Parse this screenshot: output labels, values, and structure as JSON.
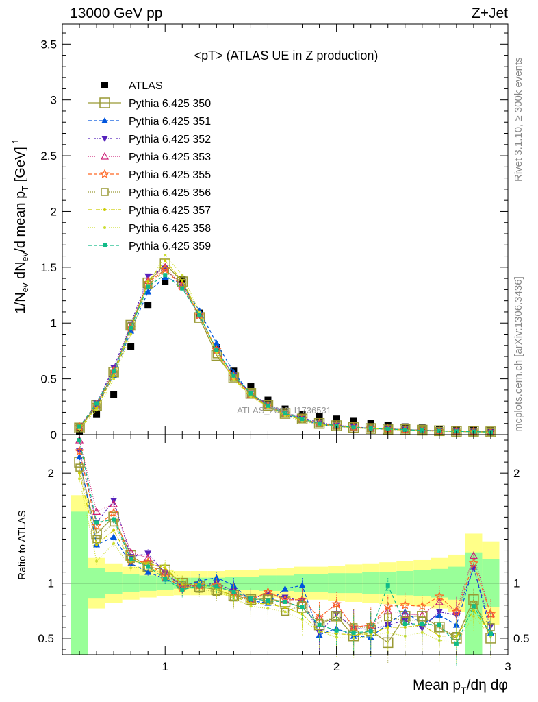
{
  "header": {
    "left": "13000 GeV pp",
    "right": "Z+Jet"
  },
  "side_text": {
    "rivet": "Rivet 3.1.10, ≥ 300k events",
    "source": "mcplots.cern.ch [arXiv:1306.3436]"
  },
  "watermark": "ATLAS_2019_I1736531",
  "colors": {
    "data": "#000000",
    "band_inner": "#99ff99",
    "band_outer": "#ffff88",
    "s350": "#999933",
    "s351": "#0055dd",
    "s352": "#5522bb",
    "s353": "#cc2277",
    "s355": "#ff6622",
    "s356": "#999933",
    "s357": "#cccc00",
    "s358": "#ccdd33",
    "s359": "#11bb88"
  },
  "chart_data": [
    {
      "type": "scatter",
      "title": "<pT> (ATLAS UE in Z production)",
      "xlabel": "Mean p_T/dη dφ",
      "ylabel": "1/N_ev dN_ev/d mean p_T [GeV]^-1",
      "xlim": [
        0.4,
        3.0
      ],
      "ylim": [
        0,
        3.68
      ],
      "yticks": [
        0,
        0.5,
        1,
        1.5,
        2,
        2.5,
        3,
        3.5
      ],
      "yticklabels": [
        "0",
        "0.5",
        "1",
        "1.5",
        "2",
        "2.5",
        "3",
        "3.5"
      ],
      "legend_position": "top-left",
      "x": [
        0.5,
        0.6,
        0.7,
        0.8,
        0.9,
        1.0,
        1.1,
        1.2,
        1.3,
        1.4,
        1.5,
        1.6,
        1.7,
        1.8,
        1.9,
        2.0,
        2.1,
        2.2,
        2.3,
        2.4,
        2.5,
        2.6,
        2.7,
        2.8,
        2.9
      ],
      "series": [
        {
          "name": "ATLAS",
          "style": "data",
          "values": [
            0.03,
            0.18,
            0.36,
            0.79,
            1.16,
            1.37,
            1.39,
            1.09,
            0.78,
            0.57,
            0.43,
            0.31,
            0.23,
            0.18,
            0.16,
            0.14,
            0.12,
            0.1,
            0.08,
            0.07,
            0.06,
            0.05,
            0.045,
            0.04,
            0.035
          ]
        },
        {
          "name": "Pythia 6.425 350",
          "style": "s350",
          "values": [
            0.06,
            0.26,
            0.56,
            0.98,
            1.36,
            1.53,
            1.37,
            1.05,
            0.71,
            0.51,
            0.37,
            0.26,
            0.19,
            0.14,
            0.1,
            0.08,
            0.065,
            0.055,
            0.05,
            0.045,
            0.04,
            0.035,
            0.03,
            0.03,
            0.025
          ]
        },
        {
          "name": "Pythia 6.425 351",
          "style": "s351",
          "values": [
            0.07,
            0.26,
            0.53,
            0.93,
            1.28,
            1.41,
            1.35,
            1.11,
            0.82,
            0.56,
            0.36,
            0.25,
            0.18,
            0.13,
            0.09,
            0.075,
            0.062,
            0.054,
            0.048,
            0.042,
            0.037,
            0.032,
            0.028,
            0.026,
            0.022
          ]
        },
        {
          "name": "Pythia 6.425 352",
          "style": "s352",
          "values": [
            0.07,
            0.28,
            0.6,
            0.99,
            1.42,
            1.49,
            1.33,
            1.07,
            0.76,
            0.53,
            0.37,
            0.27,
            0.2,
            0.15,
            0.11,
            0.085,
            0.07,
            0.058,
            0.052,
            0.046,
            0.04,
            0.035,
            0.031,
            0.028,
            0.024
          ]
        },
        {
          "name": "Pythia 6.425 353",
          "style": "s353",
          "values": [
            0.07,
            0.27,
            0.58,
            0.97,
            1.38,
            1.5,
            1.34,
            1.06,
            0.75,
            0.52,
            0.36,
            0.26,
            0.19,
            0.14,
            0.1,
            0.08,
            0.066,
            0.056,
            0.05,
            0.044,
            0.038,
            0.033,
            0.029,
            0.027,
            0.023
          ]
        },
        {
          "name": "Pythia 6.425 355",
          "style": "s355",
          "values": [
            0.07,
            0.27,
            0.57,
            0.96,
            1.36,
            1.48,
            1.33,
            1.07,
            0.76,
            0.52,
            0.36,
            0.26,
            0.19,
            0.14,
            0.1,
            0.08,
            0.066,
            0.056,
            0.05,
            0.044,
            0.038,
            0.033,
            0.029,
            0.027,
            0.023
          ]
        },
        {
          "name": "Pythia 6.425 356",
          "style": "s356",
          "values": [
            0.06,
            0.25,
            0.55,
            0.97,
            1.34,
            1.47,
            1.36,
            1.04,
            0.72,
            0.51,
            0.37,
            0.26,
            0.19,
            0.14,
            0.1,
            0.08,
            0.066,
            0.056,
            0.05,
            0.044,
            0.038,
            0.033,
            0.029,
            0.027,
            0.023
          ]
        },
        {
          "name": "Pythia 6.425 357",
          "style": "s357",
          "values": [
            0.06,
            0.24,
            0.53,
            0.95,
            1.37,
            1.56,
            1.38,
            1.08,
            0.74,
            0.5,
            0.35,
            0.25,
            0.18,
            0.13,
            0.09,
            0.075,
            0.062,
            0.054,
            0.048,
            0.042,
            0.037,
            0.032,
            0.028,
            0.026,
            0.022
          ]
        },
        {
          "name": "Pythia 6.425 358",
          "style": "s358",
          "values": [
            0.05,
            0.22,
            0.5,
            0.9,
            1.34,
            1.61,
            1.43,
            1.1,
            0.73,
            0.49,
            0.34,
            0.24,
            0.17,
            0.12,
            0.09,
            0.072,
            0.06,
            0.052,
            0.046,
            0.04,
            0.035,
            0.03,
            0.027,
            0.025,
            0.021
          ]
        },
        {
          "name": "Pythia 6.425 359",
          "style": "s359",
          "values": [
            0.07,
            0.28,
            0.57,
            0.96,
            1.33,
            1.43,
            1.31,
            1.07,
            0.76,
            0.53,
            0.37,
            0.26,
            0.19,
            0.14,
            0.1,
            0.08,
            0.066,
            0.056,
            0.05,
            0.044,
            0.038,
            0.033,
            0.029,
            0.027,
            0.023
          ]
        }
      ]
    },
    {
      "type": "line",
      "ylabel": "Ratio to ATLAS",
      "xlim": [
        0.4,
        3.0
      ],
      "ylim": [
        0.35,
        2.35
      ],
      "yticks": [
        0.5,
        1,
        2
      ],
      "yticklabels": [
        "0.5",
        "1",
        "2"
      ],
      "xticks": [
        1,
        2,
        3
      ],
      "xticklabels": [
        "1",
        "2",
        "3"
      ],
      "band_inner": [
        [
          0.35,
          1.65
        ],
        [
          0.86,
          1.14
        ],
        [
          0.9,
          1.1
        ],
        [
          0.92,
          1.08
        ],
        [
          0.93,
          1.07
        ],
        [
          0.94,
          1.06
        ],
        [
          0.95,
          1.05
        ],
        [
          0.95,
          1.05
        ],
        [
          0.95,
          1.05
        ],
        [
          0.94,
          1.06
        ],
        [
          0.94,
          1.06
        ],
        [
          0.93,
          1.07
        ],
        [
          0.93,
          1.07
        ],
        [
          0.92,
          1.08
        ],
        [
          0.92,
          1.08
        ],
        [
          0.91,
          1.09
        ],
        [
          0.91,
          1.09
        ],
        [
          0.9,
          1.1
        ],
        [
          0.9,
          1.1
        ],
        [
          0.89,
          1.11
        ],
        [
          0.88,
          1.12
        ],
        [
          0.87,
          1.13
        ],
        [
          0.85,
          1.15
        ],
        [
          0.35,
          1.28
        ],
        [
          0.78,
          1.22
        ]
      ],
      "band_outer": [
        [
          0.35,
          1.8
        ],
        [
          0.77,
          1.23
        ],
        [
          0.82,
          1.18
        ],
        [
          0.85,
          1.15
        ],
        [
          0.87,
          1.13
        ],
        [
          0.88,
          1.12
        ],
        [
          0.89,
          1.11
        ],
        [
          0.89,
          1.11
        ],
        [
          0.89,
          1.11
        ],
        [
          0.88,
          1.12
        ],
        [
          0.88,
          1.12
        ],
        [
          0.87,
          1.13
        ],
        [
          0.86,
          1.14
        ],
        [
          0.85,
          1.15
        ],
        [
          0.85,
          1.15
        ],
        [
          0.84,
          1.16
        ],
        [
          0.83,
          1.17
        ],
        [
          0.82,
          1.18
        ],
        [
          0.81,
          1.19
        ],
        [
          0.8,
          1.2
        ],
        [
          0.79,
          1.21
        ],
        [
          0.77,
          1.23
        ],
        [
          0.74,
          1.26
        ],
        [
          0.35,
          1.45
        ],
        [
          0.62,
          1.38
        ]
      ],
      "series": [
        {
          "name": "Pythia 6.425 350",
          "style": "s350",
          "values": [
            2.1,
            1.45,
            1.6,
            1.25,
            1.15,
            1.12,
            1.0,
            0.97,
            0.94,
            0.89,
            0.85,
            0.86,
            0.83,
            0.78,
            0.62,
            0.7,
            0.52,
            0.57,
            0.46,
            0.7,
            0.7,
            0.6,
            0.5,
            0.85,
            0.5
          ]
        },
        {
          "name": "Pythia 6.425 351",
          "style": "s351",
          "values": [
            2.15,
            1.35,
            1.42,
            1.18,
            1.1,
            1.04,
            0.97,
            1.02,
            1.05,
            0.98,
            0.84,
            0.82,
            0.95,
            0.98,
            0.53,
            0.59,
            0.52,
            0.51,
            0.63,
            0.74,
            0.63,
            0.71,
            0.62,
            1.15,
            0.55
          ]
        },
        {
          "name": "Pythia 6.425 352",
          "style": "s352",
          "values": [
            2.2,
            1.55,
            1.75,
            1.24,
            1.27,
            1.09,
            0.97,
            0.98,
            1.0,
            0.93,
            0.86,
            0.9,
            0.87,
            0.84,
            0.55,
            0.72,
            0.59,
            0.58,
            0.62,
            0.66,
            0.59,
            0.74,
            0.71,
            1.14,
            0.61
          ]
        },
        {
          "name": "Pythia 6.425 353",
          "style": "s353",
          "values": [
            2.3,
            1.65,
            1.72,
            1.28,
            1.23,
            1.1,
            0.98,
            0.98,
            0.98,
            0.92,
            0.85,
            0.92,
            0.85,
            0.85,
            0.69,
            0.81,
            0.6,
            0.62,
            0.75,
            0.72,
            0.71,
            0.83,
            0.75,
            1.25,
            0.72
          ]
        },
        {
          "name": "Pythia 6.425 355",
          "style": "s355",
          "values": [
            2.2,
            1.52,
            1.64,
            1.2,
            1.19,
            1.06,
            0.96,
            0.98,
            0.98,
            0.91,
            0.85,
            0.92,
            0.85,
            0.85,
            0.69,
            0.81,
            0.6,
            0.62,
            0.79,
            0.8,
            0.79,
            0.88,
            0.74,
            1.18,
            0.72
          ]
        },
        {
          "name": "Pythia 6.425 356",
          "style": "s356",
          "values": [
            2.05,
            1.4,
            1.55,
            1.22,
            1.15,
            1.07,
            0.98,
            0.95,
            0.92,
            0.87,
            0.85,
            0.86,
            0.74,
            0.8,
            0.64,
            0.7,
            0.6,
            0.6,
            0.69,
            0.66,
            0.66,
            0.59,
            0.52,
            0.8,
            0.6
          ]
        },
        {
          "name": "Pythia 6.425 357",
          "style": "s357",
          "values": [
            2.0,
            1.35,
            1.48,
            1.2,
            1.18,
            1.14,
            0.99,
            0.99,
            0.95,
            0.88,
            0.82,
            0.81,
            0.78,
            0.72,
            0.56,
            0.54,
            0.53,
            0.54,
            0.6,
            0.6,
            0.62,
            0.52,
            0.52,
            0.75,
            0.55
          ]
        },
        {
          "name": "Pythia 6.425 358",
          "style": "s358",
          "values": [
            1.95,
            1.2,
            1.36,
            1.14,
            1.15,
            1.17,
            1.03,
            1.01,
            0.94,
            0.86,
            0.79,
            0.77,
            0.74,
            0.67,
            0.56,
            0.51,
            0.5,
            0.52,
            0.55,
            0.52,
            0.55,
            0.48,
            0.46,
            0.7,
            0.52
          ]
        },
        {
          "name": "Pythia 6.425 359",
          "style": "s359",
          "values": [
            2.3,
            1.55,
            1.58,
            1.22,
            1.15,
            1.04,
            0.94,
            0.98,
            0.97,
            0.92,
            0.86,
            0.84,
            0.83,
            0.78,
            0.62,
            0.57,
            0.55,
            0.56,
            0.98,
            0.63,
            0.63,
            0.62,
            0.45,
            0.79,
            0.54
          ]
        }
      ]
    }
  ]
}
